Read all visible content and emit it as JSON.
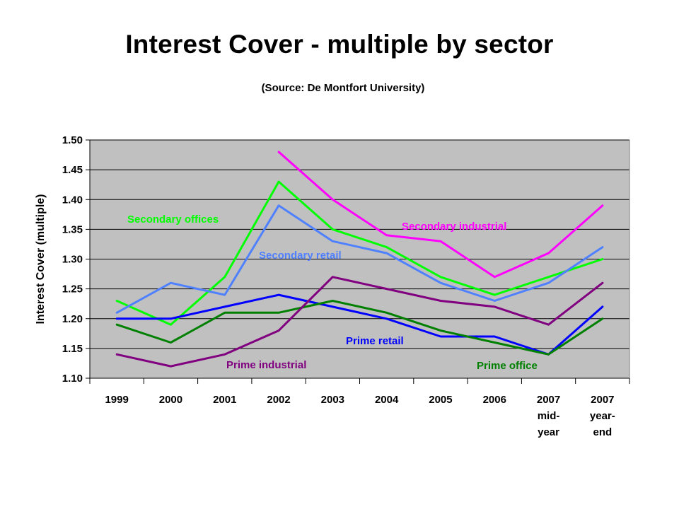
{
  "title": "Interest Cover - multiple by sector",
  "subtitle": "(Source: De Montfort University)",
  "chart_data": {
    "type": "line",
    "ylabel": "Interest Cover (multiple)",
    "xlabel": "",
    "ylim": [
      1.1,
      1.5
    ],
    "ytick_labels": [
      "1.10",
      "1.15",
      "1.20",
      "1.25",
      "1.30",
      "1.35",
      "1.40",
      "1.45",
      "1.50"
    ],
    "categories": [
      [
        "1999"
      ],
      [
        "2000"
      ],
      [
        "2001"
      ],
      [
        "2002"
      ],
      [
        "2003"
      ],
      [
        "2004"
      ],
      [
        "2005"
      ],
      [
        "2006"
      ],
      [
        "2007",
        "mid-",
        "year"
      ],
      [
        "2007",
        "year-",
        "end"
      ]
    ],
    "grid": true,
    "plot_background": "#c0c0c0",
    "series": [
      {
        "name": "Secondary industrial",
        "color": "#ff00ff",
        "values": [
          null,
          null,
          null,
          1.48,
          1.4,
          1.34,
          1.33,
          1.27,
          1.31,
          1.39
        ]
      },
      {
        "name": "Secondary offices",
        "color": "#00ff00",
        "values": [
          1.23,
          1.19,
          1.27,
          1.43,
          1.35,
          1.32,
          1.27,
          1.24,
          1.27,
          1.3
        ]
      },
      {
        "name": "Secondary retail",
        "color": "#4f81ff",
        "values": [
          1.21,
          1.26,
          1.24,
          1.39,
          1.33,
          1.31,
          1.26,
          1.23,
          1.26,
          1.32
        ]
      },
      {
        "name": "Prime retail",
        "color": "#0000ff",
        "values": [
          1.2,
          1.2,
          1.22,
          1.24,
          1.22,
          1.2,
          1.17,
          1.17,
          1.14,
          1.22
        ]
      },
      {
        "name": "Prime office",
        "color": "#008000",
        "values": [
          1.19,
          1.16,
          1.21,
          1.21,
          1.23,
          1.21,
          1.18,
          1.16,
          1.14,
          1.2
        ]
      },
      {
        "name": "Prime industrial",
        "color": "#800080",
        "values": [
          1.14,
          1.12,
          1.14,
          1.18,
          1.27,
          1.25,
          1.23,
          1.22,
          1.19,
          1.26
        ]
      }
    ]
  }
}
